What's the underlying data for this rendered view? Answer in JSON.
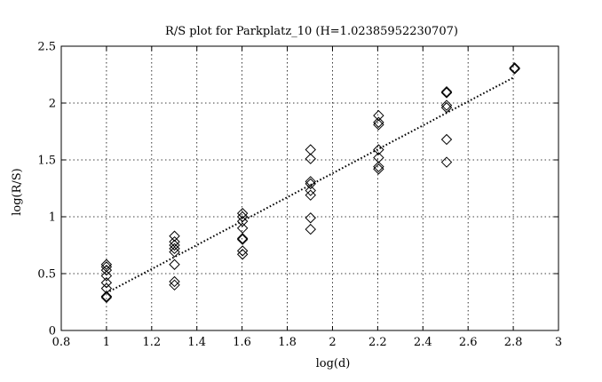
{
  "chart_data": {
    "type": "scatter",
    "title": "R/S plot for Parkplatz_10 (H=1.02385952230707)",
    "xlabel": "log(d)",
    "ylabel": "log(R/S)",
    "xlim": [
      0.8,
      3
    ],
    "ylim": [
      0,
      2.5
    ],
    "xticks": [
      0.8,
      1,
      1.2,
      1.4,
      1.6,
      1.8,
      2,
      2.2,
      2.4,
      2.6,
      2.8,
      3
    ],
    "xtick_labels": [
      "0.8",
      "1",
      "1.2",
      "1.4",
      "1.6",
      "1.8",
      "2",
      "2.2",
      "2.4",
      "2.6",
      "2.8",
      "3"
    ],
    "yticks": [
      0,
      0.5,
      1,
      1.5,
      2,
      2.5
    ],
    "ytick_labels": [
      "0",
      "0.5",
      "1",
      "1.5",
      "2",
      "2.5"
    ],
    "grid": true,
    "marker": "diamond",
    "points": [
      {
        "x": 1.0,
        "y": 0.29
      },
      {
        "x": 1.0,
        "y": 0.3
      },
      {
        "x": 1.0,
        "y": 0.37
      },
      {
        "x": 1.0,
        "y": 0.42
      },
      {
        "x": 1.0,
        "y": 0.48
      },
      {
        "x": 1.0,
        "y": 0.53
      },
      {
        "x": 1.0,
        "y": 0.56
      },
      {
        "x": 1.0,
        "y": 0.58
      },
      {
        "x": 1.301,
        "y": 0.4
      },
      {
        "x": 1.301,
        "y": 0.43
      },
      {
        "x": 1.301,
        "y": 0.58
      },
      {
        "x": 1.301,
        "y": 0.69
      },
      {
        "x": 1.301,
        "y": 0.72
      },
      {
        "x": 1.301,
        "y": 0.75
      },
      {
        "x": 1.301,
        "y": 0.78
      },
      {
        "x": 1.301,
        "y": 0.83
      },
      {
        "x": 1.602,
        "y": 0.67
      },
      {
        "x": 1.602,
        "y": 0.7
      },
      {
        "x": 1.602,
        "y": 0.8
      },
      {
        "x": 1.602,
        "y": 0.81
      },
      {
        "x": 1.602,
        "y": 0.9
      },
      {
        "x": 1.602,
        "y": 0.96
      },
      {
        "x": 1.602,
        "y": 1.0
      },
      {
        "x": 1.602,
        "y": 1.03
      },
      {
        "x": 1.903,
        "y": 0.89
      },
      {
        "x": 1.903,
        "y": 0.99
      },
      {
        "x": 1.903,
        "y": 1.19
      },
      {
        "x": 1.903,
        "y": 1.23
      },
      {
        "x": 1.903,
        "y": 1.29
      },
      {
        "x": 1.903,
        "y": 1.31
      },
      {
        "x": 1.903,
        "y": 1.51
      },
      {
        "x": 1.903,
        "y": 1.59
      },
      {
        "x": 2.204,
        "y": 1.42
      },
      {
        "x": 2.204,
        "y": 1.44
      },
      {
        "x": 2.204,
        "y": 1.52
      },
      {
        "x": 2.204,
        "y": 1.59
      },
      {
        "x": 2.204,
        "y": 1.81
      },
      {
        "x": 2.204,
        "y": 1.83
      },
      {
        "x": 2.204,
        "y": 1.89
      },
      {
        "x": 2.505,
        "y": 1.48
      },
      {
        "x": 2.505,
        "y": 1.68
      },
      {
        "x": 2.505,
        "y": 1.96
      },
      {
        "x": 2.505,
        "y": 1.98
      },
      {
        "x": 2.505,
        "y": 2.09
      },
      {
        "x": 2.505,
        "y": 2.1
      },
      {
        "x": 2.806,
        "y": 2.3
      },
      {
        "x": 2.806,
        "y": 2.31
      }
    ],
    "fit_line": {
      "style": "dotted",
      "x": [
        1.0,
        2.806
      ],
      "y": [
        0.33,
        2.23
      ]
    }
  }
}
